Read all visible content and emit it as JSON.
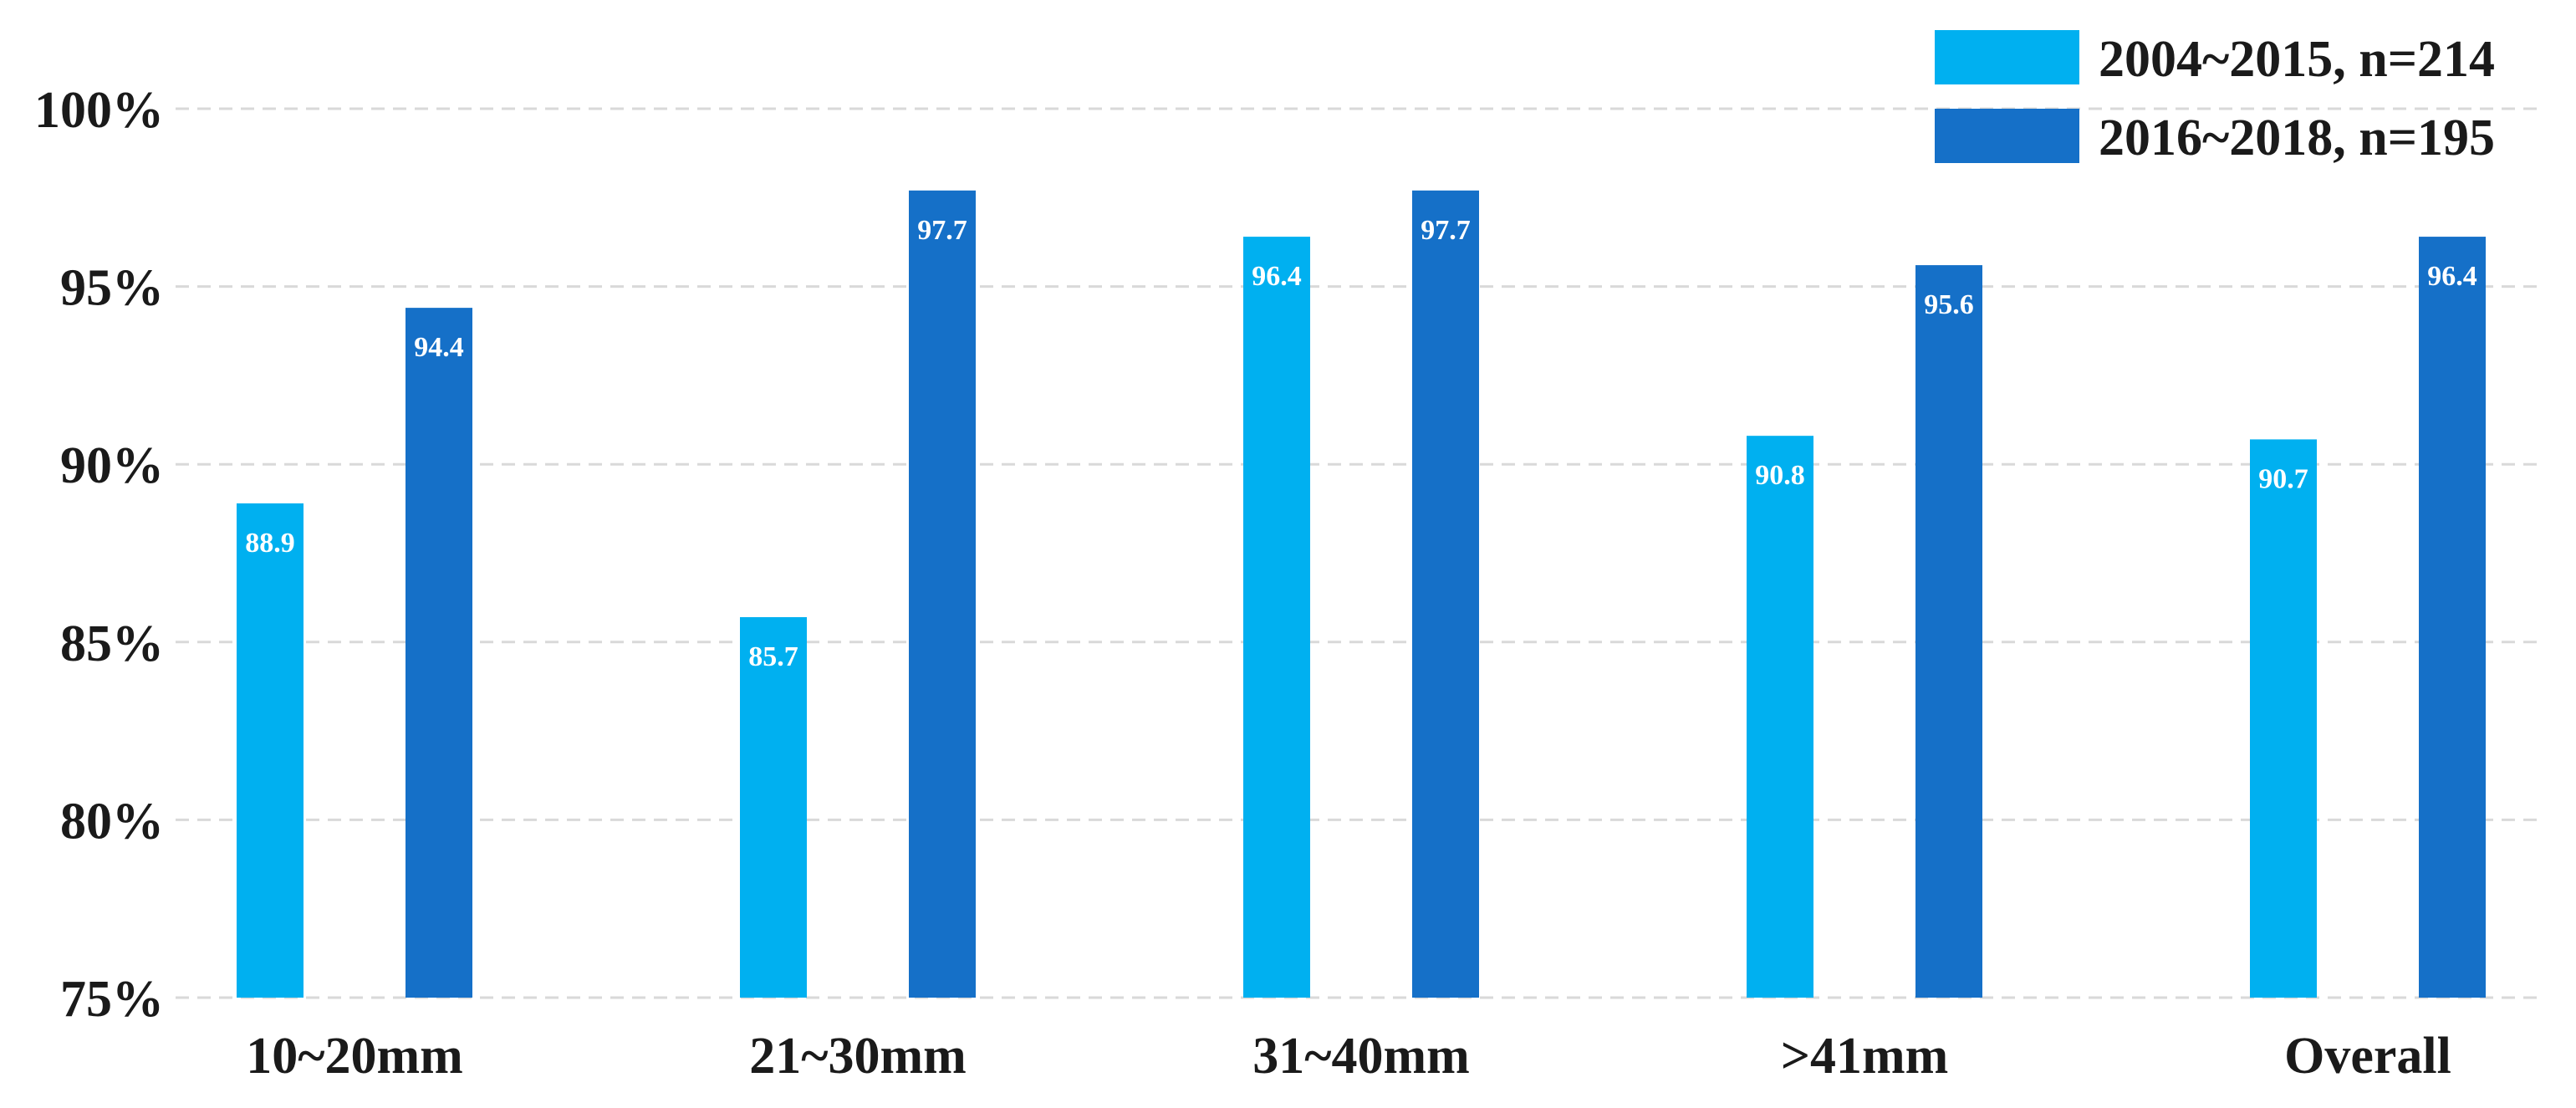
{
  "chart_data": {
    "type": "bar",
    "categories": [
      "10~20mm",
      "21~30mm",
      "31~40mm",
      ">41mm",
      "Overall"
    ],
    "series": [
      {
        "name": "2004~2015, n=214",
        "color": "#00b0f0",
        "values": [
          88.9,
          85.7,
          96.4,
          90.8,
          90.7
        ],
        "labels": [
          "88.9",
          "85.7",
          "96.4",
          "90.8",
          "90.7"
        ]
      },
      {
        "name": "2016~2018, n=195",
        "color": "#1570c8",
        "values": [
          94.4,
          97.7,
          97.7,
          95.6,
          96.4
        ],
        "labels": [
          "94.4",
          "97.7",
          "97.7",
          "95.6",
          "96.4"
        ]
      }
    ],
    "y_ticks": [
      75,
      80,
      85,
      90,
      95,
      100
    ],
    "y_tick_labels": [
      "75%",
      "80%",
      "85%",
      "90%",
      "95%",
      "100%"
    ],
    "ylim": [
      75,
      100
    ],
    "title": "",
    "xlabel": "",
    "ylabel": "",
    "grid": true,
    "legend_position": "top-right"
  }
}
